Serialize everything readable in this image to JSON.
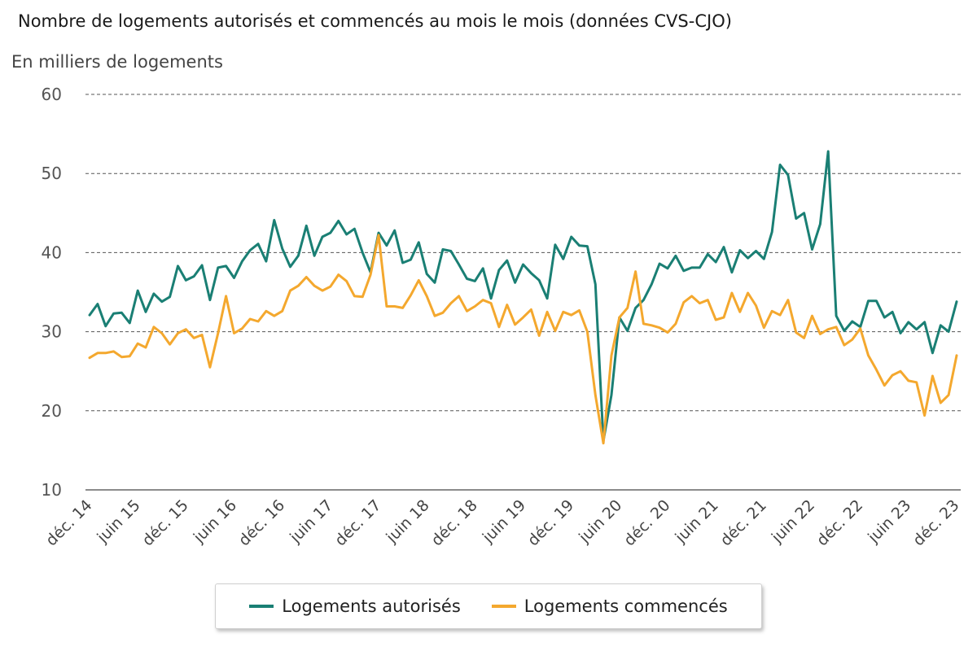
{
  "chart_data": {
    "type": "line",
    "title": "Nombre de logements autorisés et commencés au mois le mois (données CVS-CJO)",
    "ylabel": "En milliers de logements",
    "xlabel": "",
    "ylim": [
      10,
      60
    ],
    "yticks": [
      10,
      20,
      30,
      40,
      50,
      60
    ],
    "grid": true,
    "legend_position": "bottom-center",
    "x": [
      "2014-12",
      "2015-01",
      "2015-02",
      "2015-03",
      "2015-04",
      "2015-05",
      "2015-06",
      "2015-07",
      "2015-08",
      "2015-09",
      "2015-10",
      "2015-11",
      "2015-12",
      "2016-01",
      "2016-02",
      "2016-03",
      "2016-04",
      "2016-05",
      "2016-06",
      "2016-07",
      "2016-08",
      "2016-09",
      "2016-10",
      "2016-11",
      "2016-12",
      "2017-01",
      "2017-02",
      "2017-03",
      "2017-04",
      "2017-05",
      "2017-06",
      "2017-07",
      "2017-08",
      "2017-09",
      "2017-10",
      "2017-11",
      "2017-12",
      "2018-01",
      "2018-02",
      "2018-03",
      "2018-04",
      "2018-05",
      "2018-06",
      "2018-07",
      "2018-08",
      "2018-09",
      "2018-10",
      "2018-11",
      "2018-12",
      "2019-01",
      "2019-02",
      "2019-03",
      "2019-04",
      "2019-05",
      "2019-06",
      "2019-07",
      "2019-08",
      "2019-09",
      "2019-10",
      "2019-11",
      "2019-12",
      "2020-01",
      "2020-02",
      "2020-03",
      "2020-04",
      "2020-05",
      "2020-06",
      "2020-07",
      "2020-08",
      "2020-09",
      "2020-10",
      "2020-11",
      "2020-12",
      "2021-01",
      "2021-02",
      "2021-03",
      "2021-04",
      "2021-05",
      "2021-06",
      "2021-07",
      "2021-08",
      "2021-09",
      "2021-10",
      "2021-11",
      "2021-12",
      "2022-01",
      "2022-02",
      "2022-03",
      "2022-04",
      "2022-05",
      "2022-06",
      "2022-07",
      "2022-08",
      "2022-09",
      "2022-10",
      "2022-11",
      "2022-12",
      "2023-01",
      "2023-02",
      "2023-03",
      "2023-04",
      "2023-05",
      "2023-06",
      "2023-07",
      "2023-08",
      "2023-09",
      "2023-10",
      "2023-11",
      "2023-12"
    ],
    "x_tick_labels": [
      "déc. 14",
      "juin 15",
      "déc. 15",
      "juin 16",
      "déc. 16",
      "juin 17",
      "déc. 17",
      "juin 18",
      "déc. 18",
      "juin 19",
      "déc. 19",
      "juin 20",
      "déc. 20",
      "juin 21",
      "déc. 21",
      "juin 22",
      "déc. 22",
      "juin 23",
      "déc. 23"
    ],
    "series": [
      {
        "name": "Logements autorisés",
        "color": "#1a7f74",
        "values": [
          32.1,
          33.5,
          30.7,
          32.3,
          32.4,
          31.1,
          35.2,
          32.5,
          34.8,
          33.8,
          34.4,
          38.3,
          36.5,
          37.0,
          38.4,
          34.0,
          38.1,
          38.3,
          36.8,
          38.9,
          40.3,
          41.1,
          38.9,
          44.1,
          40.5,
          38.2,
          39.6,
          43.4,
          39.6,
          42.0,
          42.5,
          44.0,
          42.3,
          43.0,
          40.0,
          37.5,
          42.5,
          40.9,
          42.8,
          38.7,
          39.1,
          41.3,
          37.3,
          36.2,
          40.4,
          40.2,
          38.5,
          36.7,
          36.4,
          38.0,
          34.2,
          37.8,
          39.0,
          36.2,
          38.5,
          37.4,
          36.5,
          34.2,
          41.0,
          39.2,
          42.0,
          40.9,
          40.8,
          36.0,
          16.2,
          22.0,
          31.8,
          30.1,
          33.0,
          34.0,
          36.0,
          38.6,
          38.0,
          39.6,
          37.7,
          38.1,
          38.1,
          39.8,
          38.8,
          40.7,
          37.5,
          40.3,
          39.3,
          40.2,
          39.2,
          42.6,
          51.1,
          49.8,
          44.3,
          45.0,
          40.4,
          43.6,
          52.8,
          32.0,
          30.1,
          31.3,
          30.6,
          33.9,
          33.9,
          31.8,
          32.5,
          29.8,
          31.2,
          30.3,
          31.2,
          27.3,
          30.8,
          30.0,
          33.8
        ]
      },
      {
        "name": "Logements commencés",
        "color": "#f4a82e",
        "values": [
          26.7,
          27.3,
          27.3,
          27.5,
          26.8,
          26.9,
          28.5,
          28.0,
          30.6,
          29.8,
          28.4,
          29.8,
          30.3,
          29.2,
          29.6,
          25.5,
          29.8,
          34.5,
          29.8,
          30.4,
          31.6,
          31.3,
          32.6,
          32.0,
          32.6,
          35.2,
          35.8,
          36.9,
          35.8,
          35.2,
          35.7,
          37.2,
          36.4,
          34.5,
          34.4,
          37.2,
          42.2,
          33.2,
          33.2,
          33.0,
          34.6,
          36.5,
          34.5,
          32.0,
          32.4,
          33.6,
          34.5,
          32.6,
          33.2,
          34.0,
          33.6,
          30.6,
          33.4,
          30.9,
          31.8,
          32.8,
          29.5,
          32.5,
          30.1,
          32.5,
          32.1,
          32.7,
          30.0,
          22.0,
          15.9,
          27.0,
          31.8,
          33.0,
          37.6,
          31.0,
          30.8,
          30.5,
          29.9,
          31.0,
          33.7,
          34.5,
          33.6,
          34.0,
          31.5,
          31.8,
          34.9,
          32.5,
          34.9,
          33.3,
          30.5,
          32.6,
          32.1,
          34.0,
          29.9,
          29.2,
          32.0,
          29.7,
          30.3,
          30.6,
          28.3,
          29.0,
          30.4,
          27.0,
          25.2,
          23.2,
          24.5,
          25.0,
          23.8,
          23.6,
          19.4,
          24.4,
          21.0,
          22.0,
          27.0
        ]
      }
    ]
  }
}
